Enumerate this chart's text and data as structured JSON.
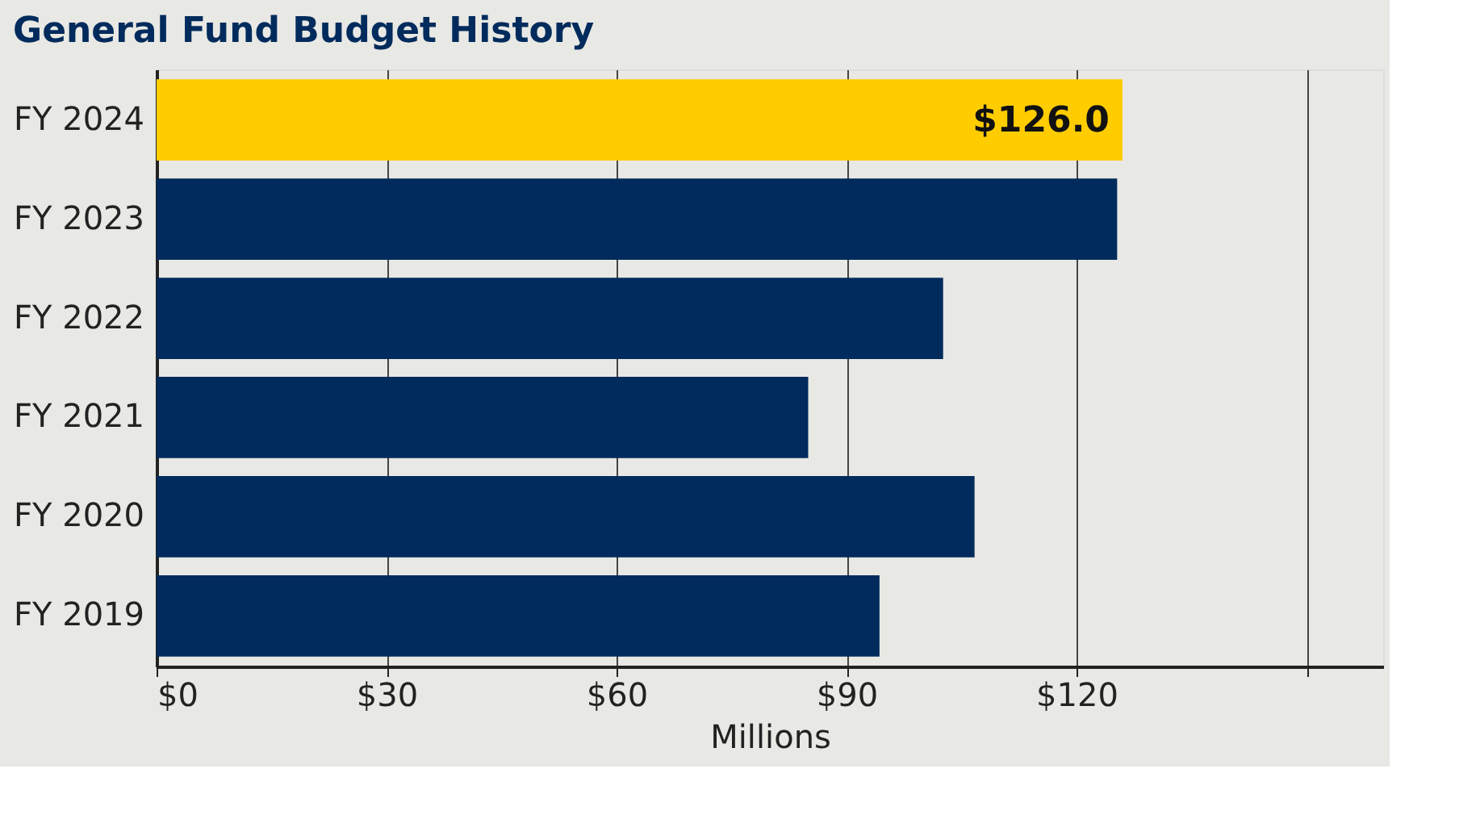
{
  "chart_data": {
    "type": "bar",
    "orientation": "horizontal",
    "title": "General Fund Budget History",
    "xlabel": "Millions",
    "categories": [
      "FY 2024",
      "FY 2023",
      "FY 2022",
      "FY 2021",
      "FY 2020",
      "FY 2019"
    ],
    "values": [
      126.0,
      125.3,
      102.6,
      85.0,
      106.7,
      94.3
    ],
    "colors": [
      "#ffcc00",
      "#002b5c",
      "#002b5c",
      "#002b5c",
      "#002b5c",
      "#002b5c"
    ],
    "value_labels": [
      "$126.0",
      null,
      null,
      null,
      null,
      null
    ],
    "xlim": [
      0,
      160
    ],
    "xticks": [
      {
        "value": 0,
        "label": "$0"
      },
      {
        "value": 30,
        "label": "$30"
      },
      {
        "value": 60,
        "label": "$60"
      },
      {
        "value": 90,
        "label": "$90"
      },
      {
        "value": 120,
        "label": "$120"
      },
      {
        "value": 150,
        "label": null
      }
    ],
    "grid": "x"
  }
}
